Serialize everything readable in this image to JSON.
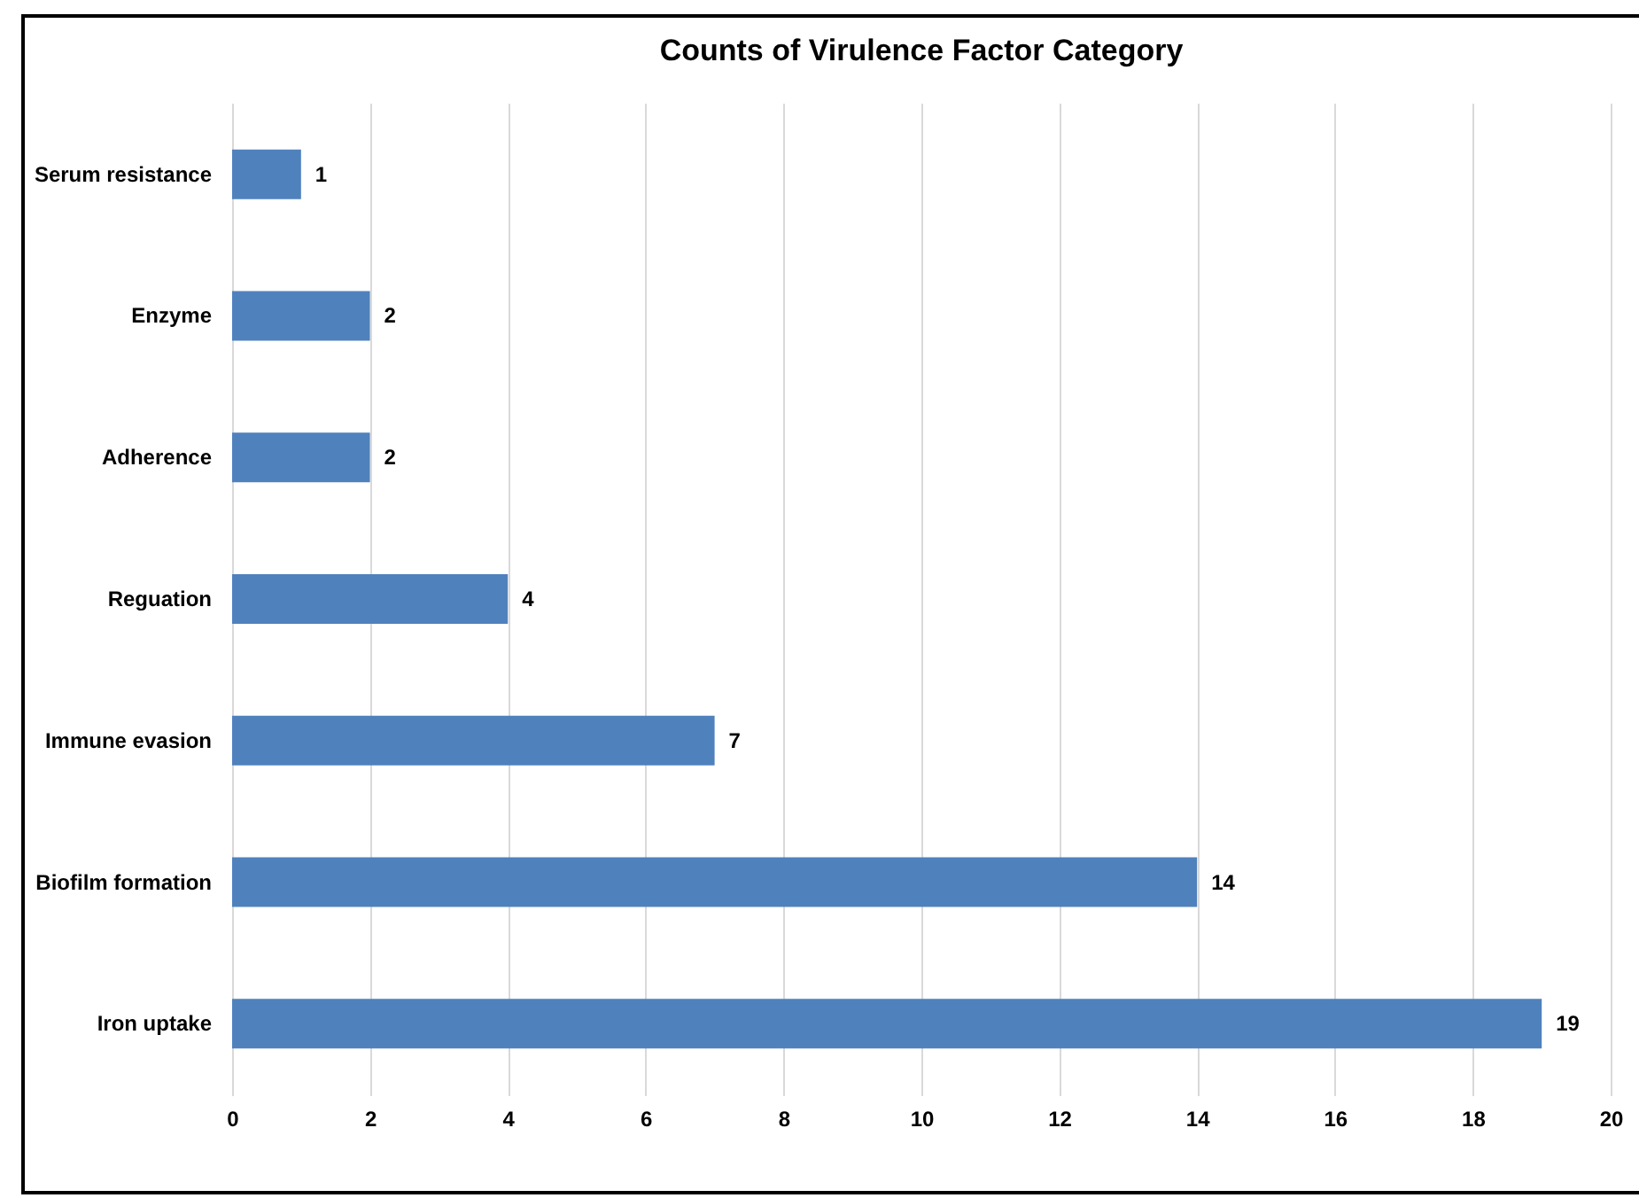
{
  "chart_data": {
    "type": "bar",
    "orientation": "horizontal",
    "title": "Counts of Virulence Factor Category",
    "categories": [
      "Serum resistance",
      "Enzyme",
      "Adherence",
      "Reguation",
      "Immune evasion",
      "Biofilm formation",
      "Iron uptake"
    ],
    "values": [
      1,
      2,
      2,
      4,
      7,
      14,
      19
    ],
    "color": "#4f81bd",
    "xlim": [
      0,
      20
    ],
    "xticks": [
      0,
      2,
      4,
      6,
      8,
      10,
      12,
      14,
      16,
      18,
      20
    ],
    "grid": "x",
    "data_labels": true
  }
}
